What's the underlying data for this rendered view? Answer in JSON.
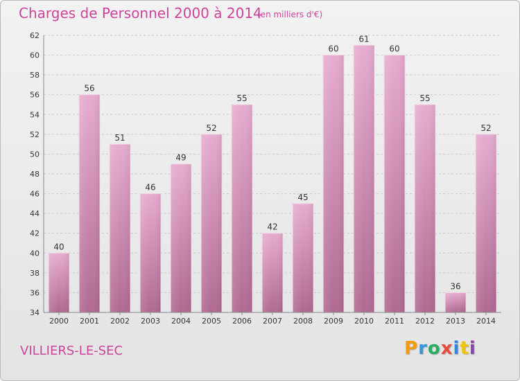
{
  "header": {
    "title": "Charges de Personnel 2000 à 2014",
    "subtitle": "(en milliers d'€)"
  },
  "footer": {
    "place": "VILLIERS-LE-SEC",
    "logo": {
      "letters": [
        "P",
        "r",
        "o",
        "x",
        "i",
        "t",
        "i"
      ],
      "colors": [
        "#f39c12",
        "#3498db",
        "#27ae60",
        "#e74c3c",
        "#2e86de",
        "#f1c40f",
        "#8e44ad"
      ]
    }
  },
  "chart_data": {
    "type": "bar",
    "categories": [
      "2000",
      "2001",
      "2002",
      "2003",
      "2004",
      "2005",
      "2006",
      "2007",
      "2008",
      "2009",
      "2010",
      "2011",
      "2012",
      "2013",
      "2014"
    ],
    "values": [
      40,
      56,
      51,
      46,
      49,
      52,
      55,
      42,
      45,
      60,
      61,
      60,
      55,
      36,
      52
    ],
    "title": "Charges de Personnel 2000 à 2014",
    "subtitle": "(en milliers d'€)",
    "xlabel": "",
    "ylabel": "",
    "ylim": [
      34,
      62
    ],
    "yticks": [
      34,
      36,
      38,
      40,
      42,
      44,
      46,
      48,
      50,
      52,
      54,
      56,
      58,
      60,
      62
    ],
    "grid": true,
    "bar_color": "#d994bc"
  }
}
